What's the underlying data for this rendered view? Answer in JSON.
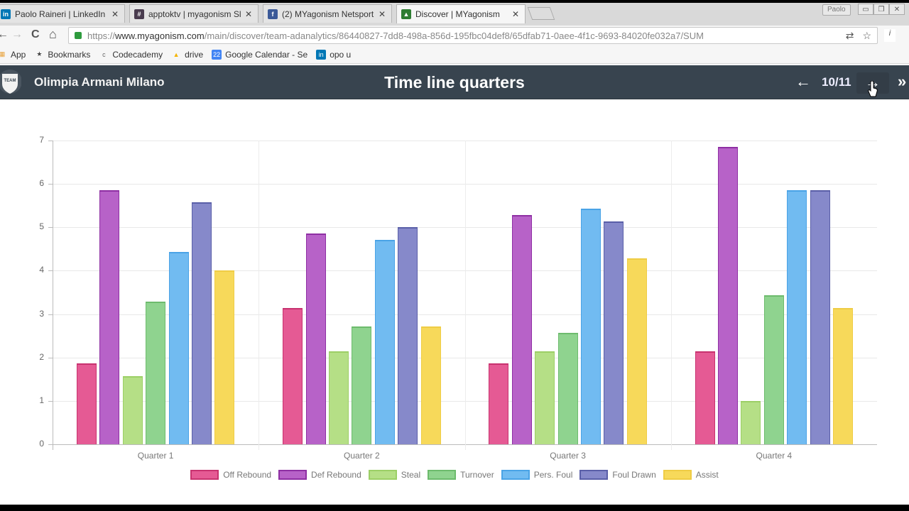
{
  "browser": {
    "tabs": [
      {
        "title": "Paolo Raineri | LinkedIn",
        "icon": "linkedin-icon",
        "icon_text": "in",
        "icon_color": "#0077b5"
      },
      {
        "title": "apptoktv | myagonism Sl",
        "icon": "slack-icon",
        "icon_text": "#",
        "icon_color": "#4a3c4f"
      },
      {
        "title": "(2) MYagonism Netsport",
        "icon": "facebook-icon",
        "icon_text": "f",
        "icon_color": "#3b5998"
      },
      {
        "title": "Discover | MYagonism",
        "icon": "myagonism-icon",
        "icon_text": "▲",
        "icon_color": "#2e7d32",
        "active": true
      }
    ],
    "tab_close": "✕",
    "user_chip": "Paolo",
    "window_buttons": [
      "▭",
      "❐",
      "✕"
    ],
    "nav": {
      "back": "←",
      "forward": "→",
      "reload": "C",
      "home": "⌂"
    },
    "url": {
      "scheme": "https://",
      "host": "www.myagonism.com",
      "path": "/main/discover/team-adanalytics/86440827-7dd8-498a-856d-195fbc04def8/65dfab71-0aee-4f1c-9693-84020fe032a7/SUM"
    },
    "omnibox_icons": {
      "translate": "⇄",
      "star": "☆"
    },
    "extension": "i",
    "bookmarks": [
      {
        "label": "App",
        "icon": "apps-grid-icon",
        "icon_text": "▦",
        "icon_color": "#e8a33d"
      },
      {
        "label": "Bookmarks",
        "icon": "star-icon",
        "icon_text": "★",
        "icon_color": "#444"
      },
      {
        "label": "Codecademy",
        "icon": "codecademy-icon",
        "icon_text": "c",
        "icon_color": "#666"
      },
      {
        "label": "drive",
        "icon": "drive-icon",
        "icon_text": "▲",
        "icon_color": "#f4b400"
      },
      {
        "label": "Google Calendar - Se",
        "icon": "calendar-icon",
        "icon_text": "22",
        "icon_color": "#4285f4"
      },
      {
        "label": "opo u",
        "icon": "linkedin-icon",
        "icon_text": "in",
        "icon_color": "#0077b5"
      }
    ]
  },
  "header": {
    "team_name": "Olimpia Armani Milano",
    "team_logo_text": "TEAM",
    "title": "Time line quarters",
    "pager": {
      "prev": "←",
      "count": "10/11",
      "next": "→",
      "last": "»"
    }
  },
  "colors": {
    "appbar_bg": "#38444f",
    "series": [
      "#e55a94",
      "#b762c8",
      "#b5df86",
      "#8fd38f",
      "#71bbf1",
      "#8689ca",
      "#f7d95a"
    ],
    "series_border": [
      "#c8326f",
      "#8e2fa3",
      "#9ccf66",
      "#6dbb6d",
      "#4aa3e6",
      "#5a5fa8",
      "#efcc45"
    ]
  },
  "chart_data": {
    "type": "bar",
    "title": "Time line quarters",
    "xlabel": "",
    "ylabel": "",
    "ylim": [
      0,
      7
    ],
    "yticks": [
      0,
      1,
      2,
      3,
      4,
      5,
      6,
      7
    ],
    "grid": true,
    "legend_position": "bottom",
    "categories": [
      "Quarter 1",
      "Quarter 2",
      "Quarter 3",
      "Quarter 4"
    ],
    "series": [
      {
        "name": "Off Rebound",
        "values": [
          1.86,
          3.14,
          1.86,
          2.14
        ]
      },
      {
        "name": "Def Rebound",
        "values": [
          5.86,
          4.86,
          5.29,
          6.86
        ]
      },
      {
        "name": "Steal",
        "values": [
          1.57,
          2.14,
          2.14,
          1.0
        ]
      },
      {
        "name": "Turnover",
        "values": [
          3.29,
          2.71,
          2.57,
          3.43
        ]
      },
      {
        "name": "Pers. Foul",
        "values": [
          4.43,
          4.71,
          5.43,
          5.86
        ]
      },
      {
        "name": "Foul Drawn",
        "values": [
          5.57,
          5.0,
          5.14,
          5.86
        ]
      },
      {
        "name": "Assist",
        "values": [
          4.0,
          2.71,
          4.29,
          3.14
        ]
      }
    ]
  }
}
